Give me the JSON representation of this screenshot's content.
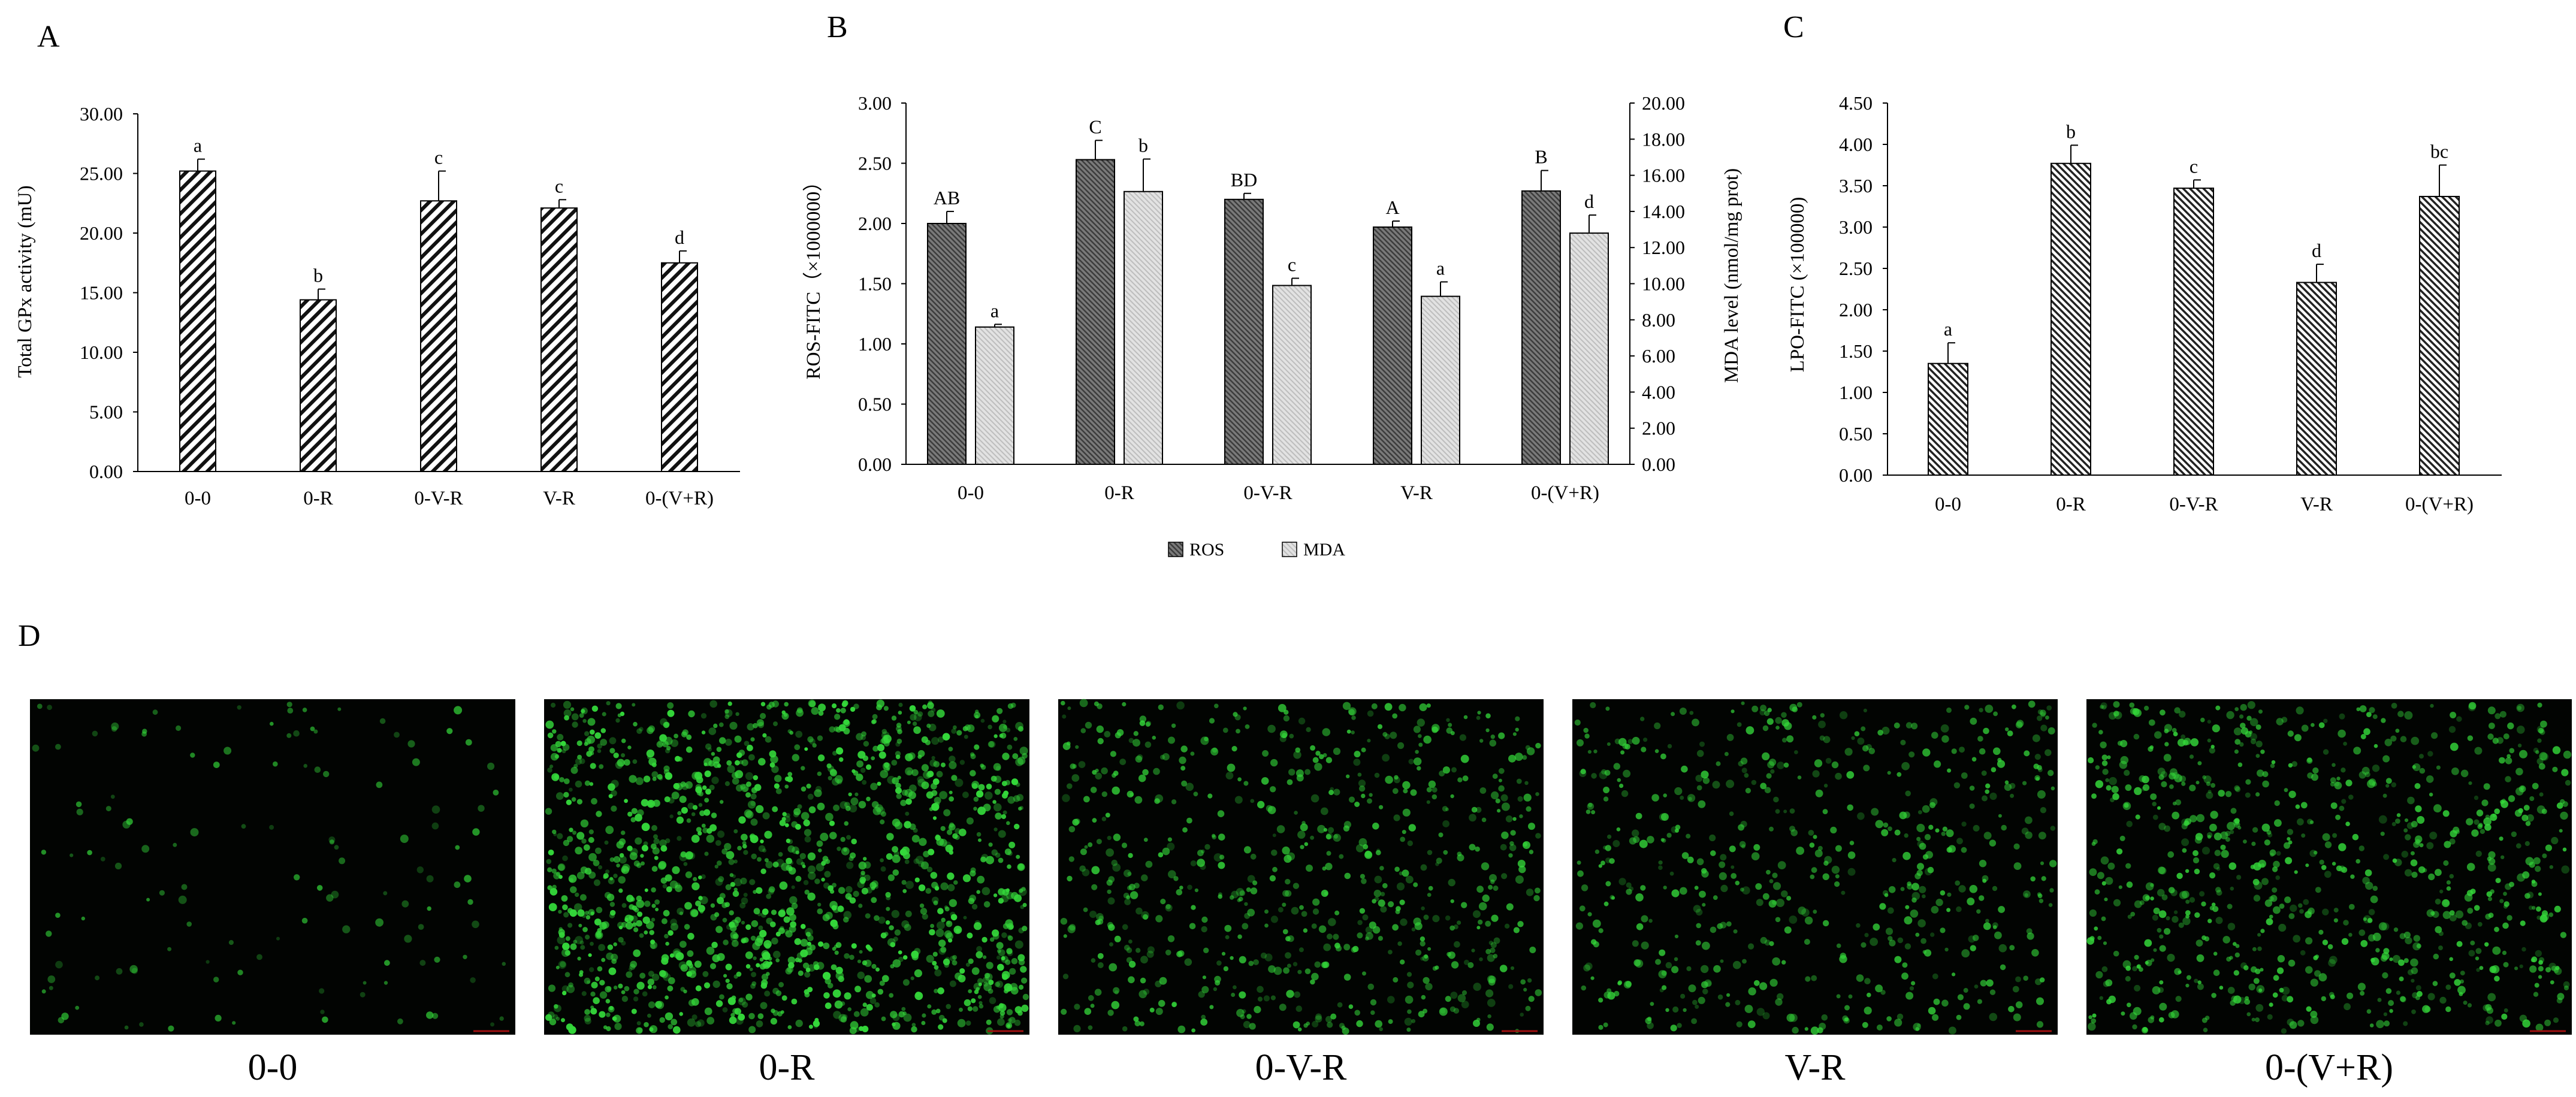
{
  "charts": [
    {
      "panel_letter": "A",
      "type": "bar",
      "ylabel": "Total GPx activity (mU)",
      "ylim": [
        0,
        30
      ],
      "yticks": [
        "0.00",
        "5.00",
        "10.00",
        "15.00",
        "20.00",
        "25.00",
        "30.00"
      ],
      "categories": [
        "0-0",
        "0-R",
        "0-V-R",
        "V-R",
        "0-(V+R)"
      ],
      "series": [
        {
          "pattern": "diag-down",
          "values": [
            25.2,
            14.4,
            22.7,
            22.1,
            17.5
          ],
          "errors": [
            1.0,
            0.9,
            2.5,
            0.7,
            1.0
          ],
          "letters": [
            "a",
            "b",
            "c",
            "c",
            "d"
          ]
        }
      ]
    },
    {
      "panel_letter": "B",
      "type": "bar",
      "ylabel": "ROS-FITC（×1000000）",
      "y2label": "MDA level (nmol/mg prot)",
      "ylim": [
        0,
        3
      ],
      "yticks": [
        "0.00",
        "0.50",
        "1.00",
        "1.50",
        "2.00",
        "2.50",
        "3.00"
      ],
      "y2lim": [
        0,
        20
      ],
      "y2ticks": [
        "0.00",
        "2.00",
        "4.00",
        "6.00",
        "8.00",
        "10.00",
        "12.00",
        "14.00",
        "16.00",
        "18.00",
        "20.00"
      ],
      "categories": [
        "0-0",
        "0-R",
        "0-V-R",
        "V-R",
        "0-(V+R)"
      ],
      "series": [
        {
          "name": "ROS",
          "axis": "left",
          "pattern": "dense",
          "values": [
            2.0,
            2.53,
            2.2,
            1.97,
            2.27
          ],
          "errors": [
            0.1,
            0.16,
            0.05,
            0.05,
            0.17
          ],
          "letters": [
            "AB",
            "C",
            "BD",
            "A",
            "B"
          ]
        },
        {
          "name": "MDA",
          "axis": "right",
          "pattern": "light",
          "values": [
            7.6,
            15.1,
            9.9,
            9.3,
            12.8
          ],
          "errors": [
            0.15,
            1.8,
            0.4,
            0.8,
            1.0
          ],
          "letters": [
            "a",
            "b",
            "c",
            "a",
            "d"
          ]
        }
      ],
      "legend": [
        "ROS",
        "MDA"
      ],
      "legend_position": "bottom"
    },
    {
      "panel_letter": "C",
      "type": "bar",
      "ylabel": "LPO-FITC (×100000)",
      "ylim": [
        0,
        4.5
      ],
      "yticks": [
        "0.00",
        "0.50",
        "1.00",
        "1.50",
        "2.00",
        "2.50",
        "3.00",
        "3.50",
        "4.00",
        "4.50"
      ],
      "categories": [
        "0-0",
        "0-R",
        "0-V-R",
        "V-R",
        "0-(V+R)"
      ],
      "series": [
        {
          "pattern": "diag-up",
          "values": [
            1.35,
            3.77,
            3.47,
            2.33,
            3.37
          ],
          "errors": [
            0.25,
            0.22,
            0.1,
            0.22,
            0.38
          ],
          "letters": [
            "a",
            "b",
            "c",
            "d",
            "bc"
          ]
        }
      ]
    }
  ],
  "micrographs": {
    "panel_letter": "D",
    "images": [
      {
        "label": "0-0",
        "fluorescence": 0.06
      },
      {
        "label": "0-R",
        "fluorescence": 1.0
      },
      {
        "label": "0-V-R",
        "fluorescence": 0.45
      },
      {
        "label": "V-R",
        "fluorescence": 0.38
      },
      {
        "label": "0-(V+R)",
        "fluorescence": 0.55
      }
    ],
    "colors": {
      "background": "#020402",
      "cell": "#34d83a"
    }
  }
}
